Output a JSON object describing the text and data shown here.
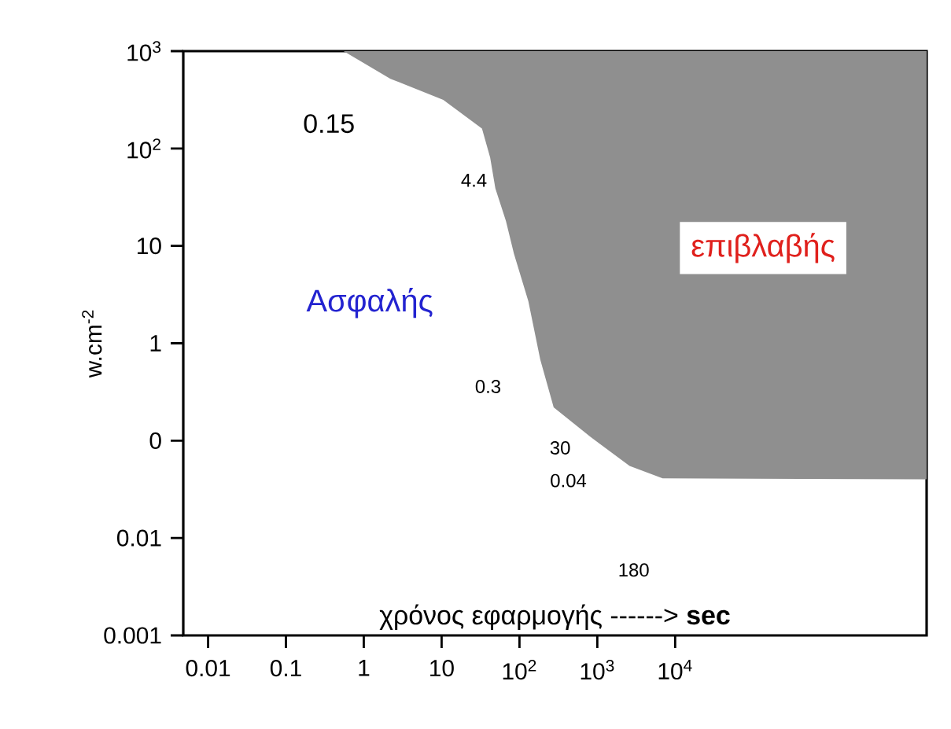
{
  "chart_data": {
    "type": "area",
    "xlabel": "χρόνος εφαρμογής ------> **sec**",
    "ylabel": "w.cm$^{-2}$",
    "log": "xy",
    "xlim": [
      0.0048,
      17000000
    ],
    "ylim": [
      0.001,
      1000
    ],
    "xticks": [
      0.01,
      0.1,
      1,
      10,
      {
        "value": 100,
        "label": "10$^{2}$"
      },
      {
        "value": 1000,
        "label": "10$^{3}$"
      },
      {
        "value": 10000,
        "label": "10$^{4}$"
      }
    ],
    "yticks": [
      0.001,
      0.01,
      {
        "value": 0.1,
        "label": "0"
      },
      1,
      10,
      {
        "value": 100,
        "label": "10$^{2}$"
      },
      {
        "value": 1000,
        "label": "10$^{3}$"
      }
    ],
    "grid": false,
    "series": [
      {
        "color": "#8f8f8f",
        "x": [
          0.55,
          2.2,
          10.5,
          33,
          42,
          49,
          67,
          85,
          130,
          185,
          275,
          810,
          2600,
          6900,
          17000000,
          17000000
        ],
        "values": [
          1000,
          520,
          316,
          160,
          81,
          39,
          18,
          8.3,
          2.7,
          0.68,
          0.22,
          0.11,
          0.055,
          0.041,
          0.04,
          1000
        ]
      }
    ],
    "annotations": [
      "0.15",
      "4.4",
      "0.3",
      "30",
      "0.04",
      "180",
      "Ασφαλής",
      "επιβλαβής"
    ]
  }
}
